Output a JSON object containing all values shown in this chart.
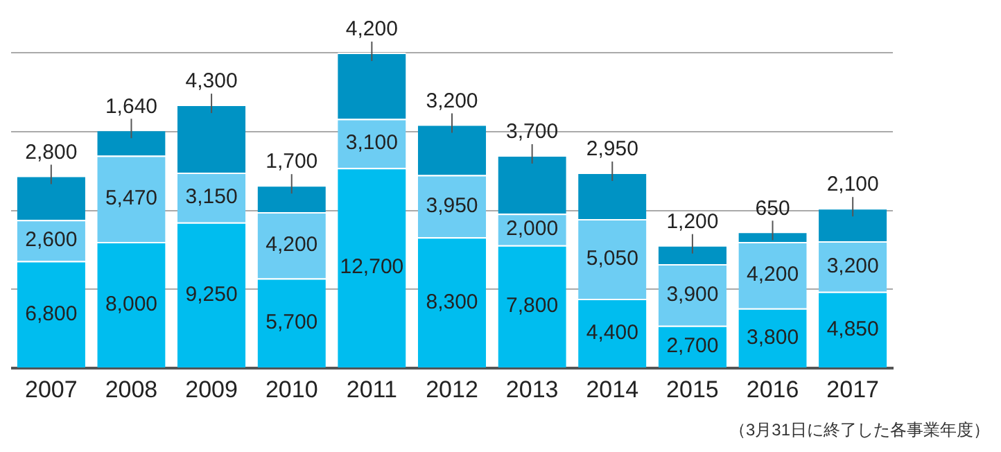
{
  "chart_data": {
    "type": "bar",
    "stacked": true,
    "grid": "y",
    "tick_labels": "x",
    "legend": false,
    "categories": [
      "2007",
      "2008",
      "2009",
      "2010",
      "2011",
      "2012",
      "2013",
      "2014",
      "2015",
      "2016",
      "2017"
    ],
    "series": [
      {
        "color": "#00bdef",
        "values": [
          6800,
          8000,
          9250,
          5700,
          12700,
          8300,
          7800,
          4400,
          2700,
          3800,
          4850
        ],
        "value_labels": [
          "6,800",
          "8,000",
          "9,250",
          "5,700",
          "12,700",
          "8,300",
          "7,800",
          "4,400",
          "2,700",
          "3,800",
          "4,850"
        ]
      },
      {
        "color": "#6dcdf3",
        "values": [
          2600,
          5470,
          3150,
          4200,
          3100,
          3950,
          2000,
          5050,
          3900,
          4200,
          3200
        ],
        "value_labels": [
          "2,600",
          "5,470",
          "3,150",
          "4,200",
          "3,100",
          "3,950",
          "2,000",
          "5,050",
          "3,900",
          "4,200",
          "3,200"
        ]
      },
      {
        "color": "#0093c4",
        "values": [
          2800,
          1640,
          4300,
          1700,
          4200,
          3200,
          3700,
          2950,
          1200,
          650,
          2100
        ],
        "value_labels": [
          "2,800",
          "1,640",
          "4,300",
          "1,700",
          "4,200",
          "3,200",
          "3,700",
          "2,950",
          "1,200",
          "650",
          "2,100"
        ]
      }
    ],
    "annotations": [
      "（3月31日に終了した各事業年度）"
    ]
  }
}
